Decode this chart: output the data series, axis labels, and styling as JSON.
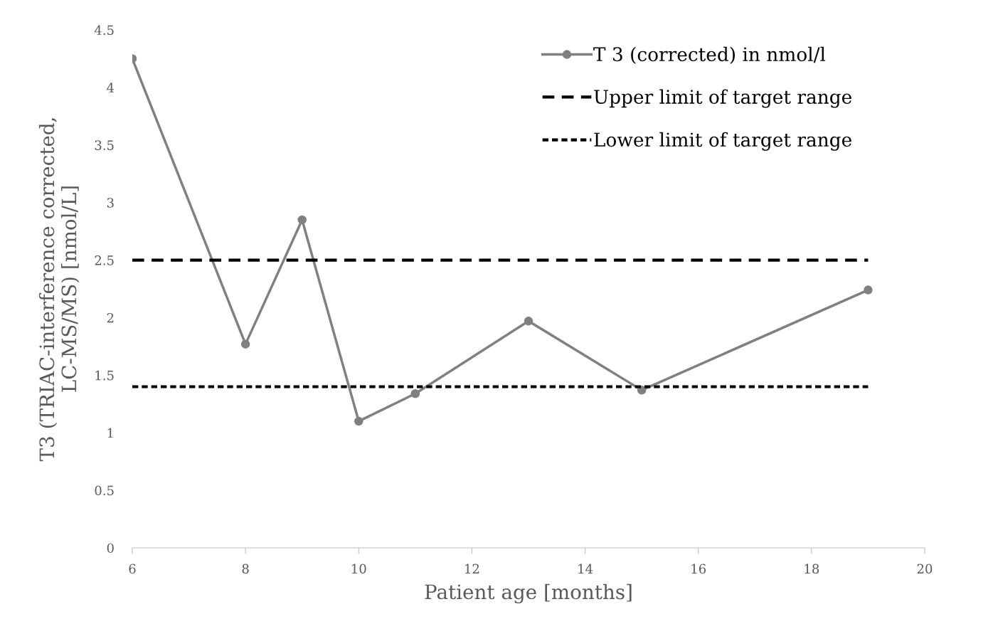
{
  "chart_data": {
    "type": "line",
    "xlabel": "Patient age [months]",
    "ylabel": "T3 (TRIAC-interference corrected,\nLC-MS/MS) [nmol/L]",
    "series": [
      {
        "name": "T 3 (corrected) in nmol/l",
        "color": "#808080",
        "x": [
          6,
          8,
          9,
          10,
          11,
          13,
          15,
          19
        ],
        "values": [
          4.25,
          1.77,
          2.85,
          1.1,
          1.34,
          1.97,
          1.37,
          2.24
        ],
        "marker": "circle",
        "line_style": "solid"
      },
      {
        "name": "Upper limit of target range",
        "color": "#000000",
        "x": [
          6,
          19
        ],
        "values": [
          2.5,
          2.5
        ],
        "marker": "none",
        "line_style": "dashed"
      },
      {
        "name": "Lower limit of target range",
        "color": "#000000",
        "x": [
          6,
          19
        ],
        "values": [
          1.4,
          1.4
        ],
        "marker": "none",
        "line_style": "dotted"
      }
    ],
    "xlim": [
      6,
      20
    ],
    "xticks": [
      6,
      8,
      10,
      12,
      14,
      16,
      18,
      20
    ],
    "ylim": [
      0,
      4.5
    ],
    "yticks": [
      0,
      0.5,
      1,
      1.5,
      2,
      2.5,
      3,
      3.5,
      4,
      4.5
    ],
    "grid": false,
    "legend": "top right"
  }
}
